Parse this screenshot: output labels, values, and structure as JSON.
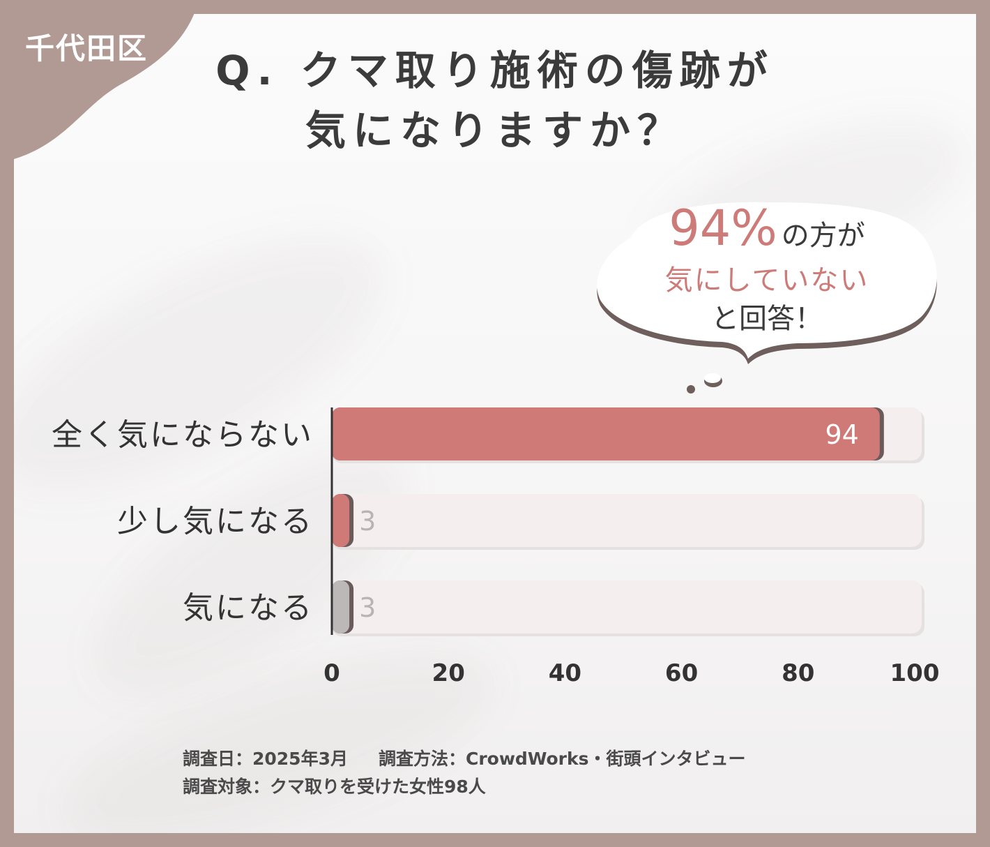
{
  "region_label": "千代田区",
  "title": {
    "line1": "Q. クマ取り施術の傷跡が",
    "line2": "気になりますか？"
  },
  "callout": {
    "percent": "94%",
    "suffix": "の方が",
    "highlight": "気にしていない",
    "tail": "と回答！"
  },
  "chart_data": {
    "type": "bar",
    "orientation": "horizontal",
    "categories": [
      "全く気にならない",
      "少し気になる",
      "気になる"
    ],
    "values": [
      94,
      3,
      3
    ],
    "bar_colors": [
      "#cf7a76",
      "#cf7a76",
      "#bdb8b8"
    ],
    "xlim": [
      0,
      100
    ],
    "xticks": [
      "0",
      "20",
      "40",
      "60",
      "80",
      "100"
    ],
    "title": "",
    "xlabel": "",
    "ylabel": "",
    "grid": false
  },
  "footer": {
    "date": "調査日：2025年3月",
    "method": "調査方法：CrowdWorks・街頭インタビュー",
    "target": "調査対象：クマ取りを受けた女性98人"
  }
}
